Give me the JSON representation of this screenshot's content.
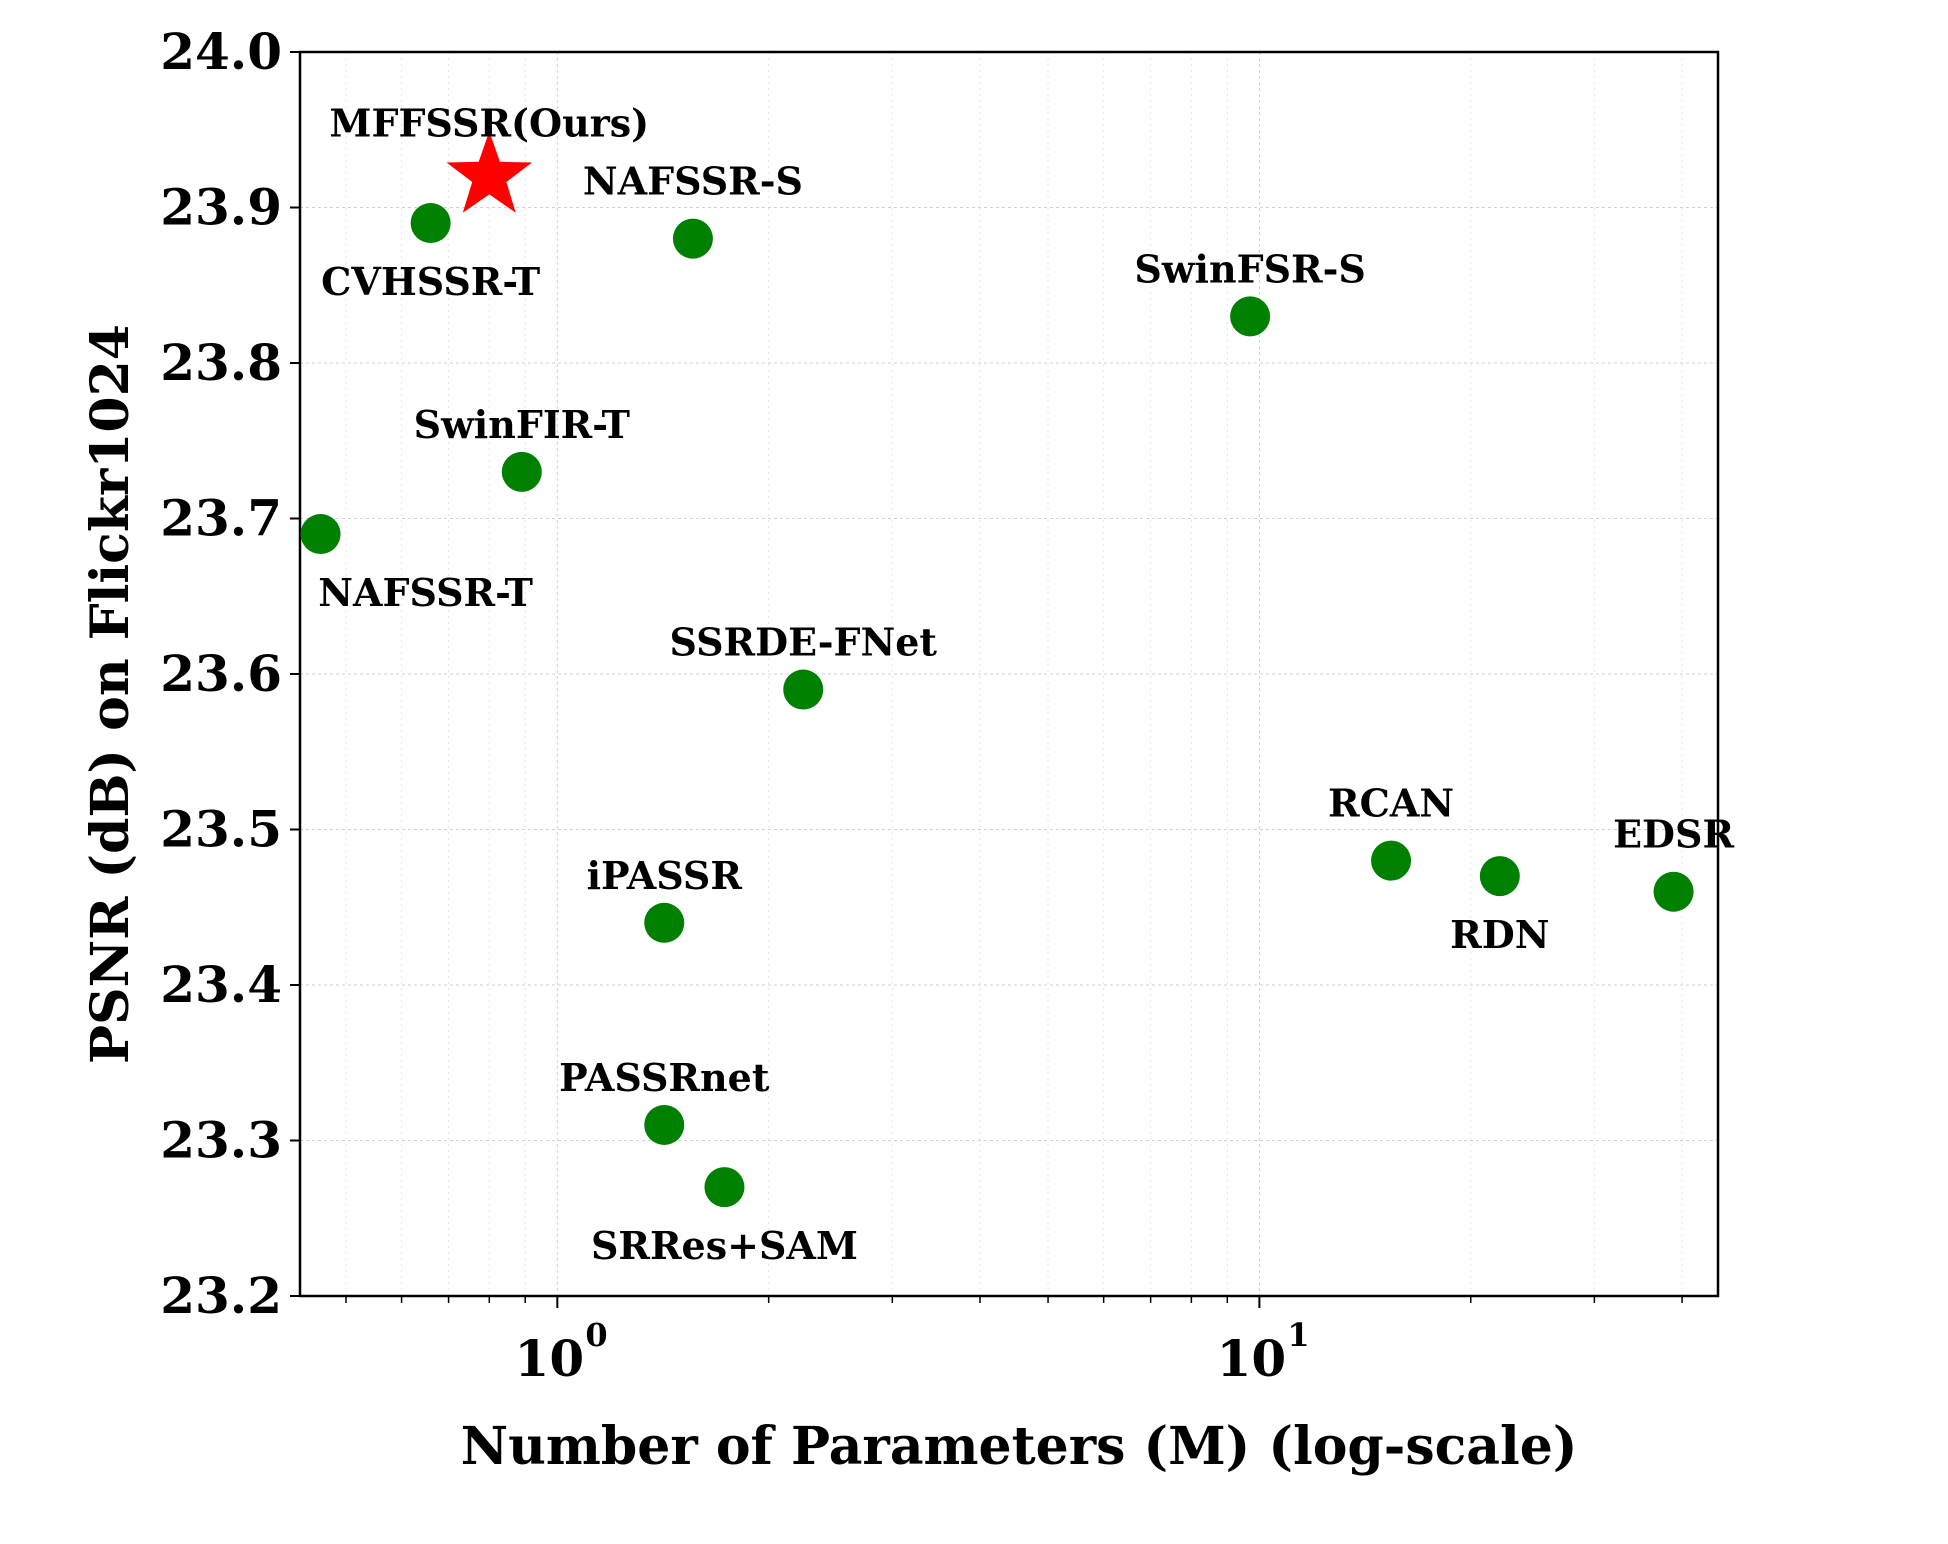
{
  "chart_data": {
    "type": "scatter",
    "xscale": "log",
    "xlabel": "Number of Parameters (M) (log-scale)",
    "ylabel": "PSNR (dB) on Flickr1024",
    "xlim": [
      0.43,
      45
    ],
    "ylim": [
      23.2,
      24.0
    ],
    "yticks": [
      "23.2",
      "23.3",
      "23.4",
      "23.5",
      "23.6",
      "23.7",
      "23.8",
      "23.9",
      "24.0"
    ],
    "xticks": [
      {
        "value": 1,
        "base": "10",
        "exp": "0"
      },
      {
        "value": 10,
        "base": "10",
        "exp": "1"
      }
    ],
    "grid": true,
    "colors": {
      "point": "#008000",
      "highlight": "#ff0000"
    },
    "points": [
      {
        "name": "MFFSSR(Ours)",
        "x": 0.8,
        "y": 23.92,
        "marker": "star",
        "label_pos": "above"
      },
      {
        "name": "CVHSSR-T",
        "x": 0.66,
        "y": 23.89,
        "marker": "circle",
        "label_pos": "below"
      },
      {
        "name": "NAFSSR-S",
        "x": 1.56,
        "y": 23.88,
        "marker": "circle",
        "label_pos": "above"
      },
      {
        "name": "SwinFSR-S",
        "x": 9.7,
        "y": 23.83,
        "marker": "circle",
        "label_pos": "above"
      },
      {
        "name": "SwinFIR-T",
        "x": 0.89,
        "y": 23.73,
        "marker": "circle",
        "label_pos": "above"
      },
      {
        "name": "NAFSSR-T",
        "x": 0.46,
        "y": 23.69,
        "marker": "circle",
        "label_pos": "below"
      },
      {
        "name": "SSRDE-FNet",
        "x": 2.24,
        "y": 23.59,
        "marker": "circle",
        "label_pos": "above"
      },
      {
        "name": "RCAN",
        "x": 15.4,
        "y": 23.48,
        "marker": "circle",
        "label_pos": "above"
      },
      {
        "name": "RDN",
        "x": 22.0,
        "y": 23.47,
        "marker": "circle",
        "label_pos": "below"
      },
      {
        "name": "EDSR",
        "x": 38.9,
        "y": 23.46,
        "marker": "circle",
        "label_pos": "above"
      },
      {
        "name": "iPASSR",
        "x": 1.42,
        "y": 23.44,
        "marker": "circle",
        "label_pos": "above"
      },
      {
        "name": "PASSRnet",
        "x": 1.42,
        "y": 23.31,
        "marker": "circle",
        "label_pos": "above"
      },
      {
        "name": "SRRes+SAM",
        "x": 1.73,
        "y": 23.27,
        "marker": "circle",
        "label_pos": "below"
      }
    ]
  }
}
